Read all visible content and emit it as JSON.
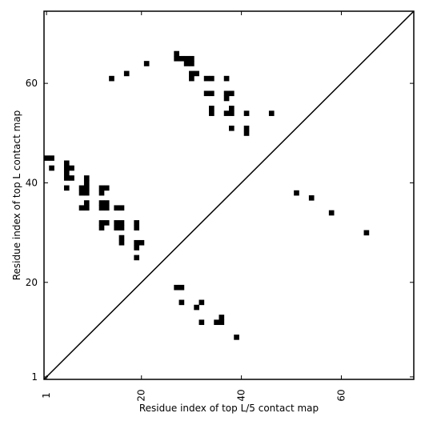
{
  "chart_data": {
    "type": "heatmap",
    "title": "",
    "xlabel": "Residue index of top L/5 contact map",
    "ylabel": "Residue index of top L contact map",
    "xlim": [
      0.5,
      74.5
    ],
    "ylim": [
      0.5,
      74.5
    ],
    "x_ticks": [
      1,
      20,
      40,
      60
    ],
    "y_ticks": [
      1,
      20,
      40,
      60
    ],
    "x_tick_labels": [
      "1",
      "20",
      "40",
      "60"
    ],
    "y_tick_labels": [
      "1",
      "20",
      "40",
      "60"
    ],
    "diagonal": true,
    "grid": false,
    "cell_color": "#000000",
    "series": [
      {
        "region": "upper-left triangle",
        "contacts": [
          [
            1,
            45
          ],
          [
            2,
            45
          ],
          [
            2,
            43
          ],
          [
            5,
            44
          ],
          [
            5,
            43
          ],
          [
            5,
            42
          ],
          [
            5,
            41
          ],
          [
            6,
            43
          ],
          [
            6,
            41
          ],
          [
            5,
            39
          ],
          [
            8,
            39
          ],
          [
            8,
            38
          ],
          [
            9,
            41
          ],
          [
            9,
            40
          ],
          [
            9,
            39
          ],
          [
            9,
            38
          ],
          [
            8,
            35
          ],
          [
            9,
            36
          ],
          [
            9,
            35
          ],
          [
            12,
            39
          ],
          [
            13,
            39
          ],
          [
            12,
            38
          ],
          [
            12,
            36
          ],
          [
            13,
            36
          ],
          [
            12,
            35
          ],
          [
            13,
            35
          ],
          [
            12,
            32
          ],
          [
            13,
            32
          ],
          [
            12,
            31
          ],
          [
            15,
            35
          ],
          [
            16,
            35
          ],
          [
            15,
            32
          ],
          [
            16,
            32
          ],
          [
            15,
            31
          ],
          [
            16,
            31
          ],
          [
            16,
            29
          ],
          [
            16,
            28
          ],
          [
            19,
            32
          ],
          [
            19,
            31
          ],
          [
            19,
            28
          ],
          [
            20,
            28
          ],
          [
            19,
            27
          ],
          [
            19,
            25
          ],
          [
            14,
            61
          ],
          [
            17,
            62
          ],
          [
            21,
            64
          ],
          [
            27,
            66
          ],
          [
            27,
            65
          ],
          [
            28,
            65
          ],
          [
            29,
            65
          ],
          [
            30,
            65
          ],
          [
            29,
            64
          ],
          [
            30,
            64
          ],
          [
            30,
            62
          ],
          [
            31,
            62
          ],
          [
            30,
            61
          ],
          [
            33,
            61
          ],
          [
            34,
            61
          ],
          [
            33,
            58
          ],
          [
            34,
            58
          ],
          [
            34,
            55
          ],
          [
            34,
            54
          ],
          [
            37,
            61
          ],
          [
            37,
            58
          ],
          [
            38,
            58
          ],
          [
            37,
            57
          ],
          [
            38,
            55
          ],
          [
            37,
            54
          ],
          [
            38,
            54
          ],
          [
            38,
            51
          ],
          [
            41,
            54
          ],
          [
            41,
            51
          ],
          [
            41,
            50
          ],
          [
            46,
            54
          ]
        ]
      },
      {
        "region": "lower-right triangle",
        "contacts": [
          [
            51,
            38
          ],
          [
            54,
            37
          ],
          [
            58,
            34
          ],
          [
            65,
            30
          ],
          [
            27,
            19
          ],
          [
            28,
            19
          ],
          [
            28,
            16
          ],
          [
            32,
            16
          ],
          [
            31,
            15
          ],
          [
            36,
            13
          ],
          [
            35,
            12
          ],
          [
            36,
            12
          ],
          [
            32,
            12
          ],
          [
            39,
            9
          ]
        ]
      }
    ]
  }
}
